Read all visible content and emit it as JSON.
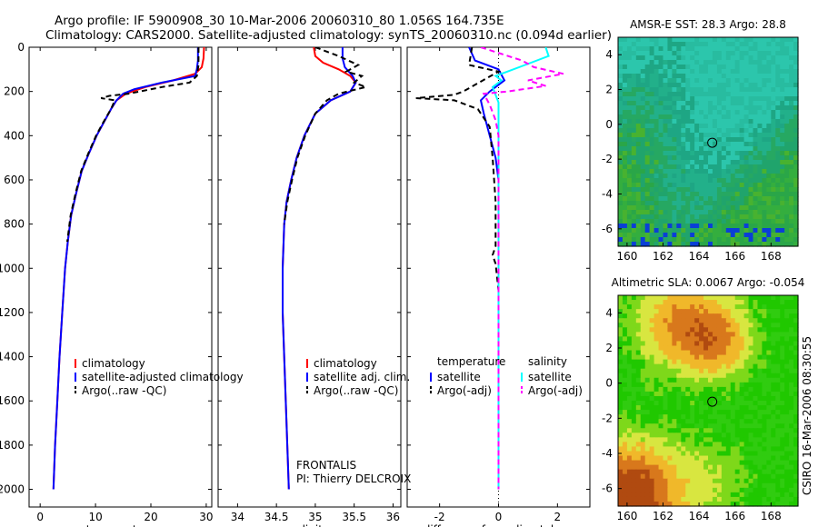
{
  "header": {
    "line1": "Argo profile: IF 5900908_30 10-Mar-2006 20060310_80 1.056S 164.735E",
    "line2": "Climatology: CARS2000. Satellite-adjusted climatology: synTS_20060310.nc (0.094d earlier)"
  },
  "credit": "CSIRO 16-Mar-2006 08:30:55",
  "colors": {
    "climatology": "#ff0000",
    "satellite": "#0000ff",
    "argo": "#000000",
    "salinity_satellite": "#00ffff",
    "salinity_argo": "#ff00ff"
  },
  "chart_data": [
    {
      "id": "temperature",
      "type": "line",
      "xlabel": "temperature",
      "ylabel": "",
      "xlim": [
        -2,
        31
      ],
      "ylim": [
        2080,
        0
      ],
      "xticks": [
        0,
        10,
        20,
        30
      ],
      "yticks": [
        0,
        200,
        400,
        600,
        800,
        1000,
        1200,
        1400,
        1600,
        1800,
        2000
      ],
      "legend": [
        "climatology",
        "satellite-adjusted climatology",
        "Argo(..raw -QC)"
      ],
      "series": [
        {
          "name": "climatology",
          "color": "#ff0000",
          "dash": "",
          "points": [
            [
              29.6,
              0
            ],
            [
              29.5,
              50
            ],
            [
              29.2,
              90
            ],
            [
              28.0,
              120
            ],
            [
              24,
              150
            ],
            [
              19,
              180
            ],
            [
              15.5,
              210
            ],
            [
              13.8,
              240
            ],
            [
              12.8,
              280
            ],
            [
              11.5,
              340
            ],
            [
              10.2,
              400
            ],
            [
              8.8,
              480
            ],
            [
              7.5,
              560
            ],
            [
              6.5,
              660
            ],
            [
              5.6,
              760
            ],
            [
              5.0,
              880
            ],
            [
              4.5,
              1000
            ],
            [
              4.0,
              1200
            ],
            [
              3.5,
              1400
            ],
            [
              3.1,
              1600
            ],
            [
              2.7,
              1800
            ],
            [
              2.4,
              2000
            ]
          ]
        },
        {
          "name": "satellite-adjusted climatology",
          "color": "#0000ff",
          "dash": "",
          "points": [
            [
              28.5,
              0
            ],
            [
              28.5,
              60
            ],
            [
              28.3,
              100
            ],
            [
              28.0,
              130
            ],
            [
              22,
              160
            ],
            [
              17,
              190
            ],
            [
              15,
              210
            ],
            [
              13.8,
              240
            ],
            [
              12.8,
              280
            ],
            [
              11.5,
              340
            ],
            [
              10.2,
              400
            ],
            [
              8.8,
              480
            ],
            [
              7.5,
              560
            ],
            [
              6.5,
              660
            ],
            [
              5.6,
              760
            ],
            [
              5.0,
              880
            ],
            [
              4.5,
              1000
            ],
            [
              4.0,
              1200
            ],
            [
              3.5,
              1400
            ],
            [
              3.1,
              1600
            ],
            [
              2.7,
              1800
            ],
            [
              2.4,
              2000
            ]
          ]
        },
        {
          "name": "Argo(..raw -QC)",
          "color": "#000000",
          "dash": "6,4",
          "points": [
            [
              28.6,
              0
            ],
            [
              28.6,
              80
            ],
            [
              28.3,
              130
            ],
            [
              27,
              160
            ],
            [
              22,
              180
            ],
            [
              16,
              210
            ],
            [
              12.5,
              220
            ],
            [
              11.0,
              230
            ],
            [
              13.5,
              240
            ],
            [
              12.8,
              280
            ],
            [
              11.4,
              340
            ],
            [
              10.1,
              400
            ],
            [
              8.7,
              480
            ],
            [
              7.4,
              560
            ],
            [
              6.4,
              660
            ],
            [
              5.5,
              760
            ],
            [
              4.9,
              880
            ]
          ]
        }
      ]
    },
    {
      "id": "salinity",
      "type": "line",
      "xlabel": "salinity",
      "ylabel": "",
      "xlim": [
        33.75,
        36.1
      ],
      "ylim": [
        2080,
        0
      ],
      "xticks": [
        34,
        34.5,
        35,
        35.5,
        36
      ],
      "yticks": [
        0,
        200,
        400,
        600,
        800,
        1000,
        1200,
        1400,
        1600,
        1800,
        2000
      ],
      "legend": [
        "climatology",
        "satellite adj. clim.",
        "Argo(..raw -QC)"
      ],
      "annotations": [
        "FRONTALIS",
        "PI: Thierry DELCROIX"
      ],
      "series": [
        {
          "name": "climatology",
          "color": "#ff0000",
          "dash": "",
          "points": [
            [
              34.98,
              0
            ],
            [
              35.0,
              40
            ],
            [
              35.1,
              70
            ],
            [
              35.3,
              100
            ],
            [
              35.45,
              130
            ],
            [
              35.52,
              160
            ],
            [
              35.45,
              200
            ],
            [
              35.2,
              240
            ],
            [
              35.0,
              300
            ],
            [
              34.86,
              400
            ],
            [
              34.76,
              500
            ],
            [
              34.69,
              600
            ],
            [
              34.63,
              700
            ],
            [
              34.6,
              800
            ],
            [
              34.58,
              1000
            ],
            [
              34.58,
              1200
            ],
            [
              34.6,
              1400
            ],
            [
              34.62,
              1600
            ],
            [
              34.64,
              1800
            ],
            [
              34.66,
              2000
            ]
          ]
        },
        {
          "name": "satellite adj. clim.",
          "color": "#0000ff",
          "dash": "",
          "points": [
            [
              35.35,
              0
            ],
            [
              35.35,
              50
            ],
            [
              35.38,
              90
            ],
            [
              35.48,
              130
            ],
            [
              35.52,
              160
            ],
            [
              35.45,
              200
            ],
            [
              35.2,
              240
            ],
            [
              35.0,
              300
            ],
            [
              34.86,
              400
            ],
            [
              34.76,
              500
            ],
            [
              34.69,
              600
            ],
            [
              34.63,
              700
            ],
            [
              34.6,
              800
            ],
            [
              34.58,
              1000
            ],
            [
              34.58,
              1200
            ],
            [
              34.6,
              1400
            ],
            [
              34.62,
              1600
            ],
            [
              34.64,
              1800
            ],
            [
              34.66,
              2000
            ]
          ]
        },
        {
          "name": "Argo(..raw -QC)",
          "color": "#000000",
          "dash": "6,4",
          "points": [
            [
              35.0,
              0
            ],
            [
              35.3,
              40
            ],
            [
              35.55,
              80
            ],
            [
              35.4,
              110
            ],
            [
              35.6,
              130
            ],
            [
              35.5,
              160
            ],
            [
              35.65,
              180
            ],
            [
              35.3,
              210
            ],
            [
              35.15,
              240
            ],
            [
              35.0,
              300
            ],
            [
              34.87,
              400
            ],
            [
              34.77,
              500
            ],
            [
              34.7,
              600
            ],
            [
              34.64,
              700
            ],
            [
              34.6,
              800
            ]
          ]
        }
      ]
    },
    {
      "id": "difference",
      "type": "line",
      "xlabel": "difference from climatology",
      "ylabel": "",
      "xlim": [
        -3.1,
        3.1
      ],
      "ylim": [
        2080,
        0
      ],
      "xticks": [
        -2,
        0,
        2
      ],
      "yticks": [
        0,
        200,
        400,
        600,
        800,
        1000,
        1200,
        1400,
        1600,
        1800,
        2000
      ],
      "legend_headers": [
        "temperature",
        "salinity"
      ],
      "legend": [
        "satellite",
        "Argo(-adj)",
        "satellite",
        "Argo(-adj)"
      ],
      "series": [
        {
          "name": "satellite",
          "group": "temperature",
          "color": "#0000ff",
          "dash": "",
          "points": [
            [
              -1.0,
              0
            ],
            [
              -0.8,
              60
            ],
            [
              0,
              100
            ],
            [
              0.2,
              150
            ],
            [
              -0.3,
              200
            ],
            [
              -0.6,
              240
            ],
            [
              -0.5,
              300
            ],
            [
              -0.3,
              400
            ],
            [
              -0.1,
              500
            ],
            [
              0,
              600
            ],
            [
              0,
              2000
            ]
          ]
        },
        {
          "name": "Argo(-adj)",
          "group": "temperature",
          "color": "#000000",
          "dash": "6,4",
          "points": [
            [
              -0.9,
              0
            ],
            [
              -1.0,
              80
            ],
            [
              0,
              110
            ],
            [
              -0.4,
              140
            ],
            [
              -1.2,
              200
            ],
            [
              -1.5,
              215
            ],
            [
              -2.8,
              230
            ],
            [
              -1.5,
              240
            ],
            [
              -0.7,
              280
            ],
            [
              -0.3,
              360
            ],
            [
              -0.2,
              500
            ],
            [
              -0.1,
              700
            ],
            [
              -0.1,
              900
            ],
            [
              -0.2,
              940
            ],
            [
              -0.1,
              980
            ],
            [
              0,
              1100
            ],
            [
              0,
              1200
            ]
          ]
        },
        {
          "name": "satellite",
          "group": "salinity",
          "color": "#00ffff",
          "dash": "",
          "points": [
            [
              1.6,
              0
            ],
            [
              1.7,
              40
            ],
            [
              0.9,
              80
            ],
            [
              0.3,
              110
            ],
            [
              -0.1,
              130
            ],
            [
              0.1,
              150
            ],
            [
              -0.2,
              180
            ],
            [
              0,
              250
            ],
            [
              0,
              2000
            ]
          ]
        },
        {
          "name": "Argo(-adj)",
          "group": "salinity",
          "color": "#ff00ff",
          "dash": "6,4",
          "points": [
            [
              -0.6,
              0
            ],
            [
              0.8,
              60
            ],
            [
              1.2,
              90
            ],
            [
              2.2,
              120
            ],
            [
              1.0,
              150
            ],
            [
              1.6,
              175
            ],
            [
              0.3,
              200
            ],
            [
              -0.5,
              210
            ],
            [
              -0.3,
              260
            ],
            [
              -0.1,
              330
            ],
            [
              0,
              400
            ],
            [
              0,
              2000
            ]
          ]
        }
      ]
    },
    {
      "id": "sst-map",
      "type": "heatmap",
      "title": "AMSR-E SST: 28.3 Argo: 28.8",
      "xlim": [
        159.5,
        169.5
      ],
      "ylim": [
        -7,
        5
      ],
      "xticks": [
        160,
        162,
        164,
        166,
        168
      ],
      "yticks": [
        -6,
        -4,
        -2,
        0,
        2,
        4
      ],
      "marker": {
        "lon": 164.735,
        "lat": -1.056
      },
      "color_scale": [
        "#0a3fd6",
        "#2cc0a6",
        "#1fa27a",
        "#2ea84a"
      ]
    },
    {
      "id": "sla-map",
      "type": "heatmap",
      "title": "Altimetric SLA: 0.0067 Argo: -0.054",
      "xlim": [
        159.5,
        169.5
      ],
      "ylim": [
        -7,
        5
      ],
      "xticks": [
        160,
        162,
        164,
        166,
        168
      ],
      "yticks": [
        -6,
        -4,
        -2,
        0,
        2,
        4
      ],
      "marker": {
        "lon": 164.735,
        "lat": -1.056
      },
      "color_scale": [
        "#16c000",
        "#f2e23a",
        "#f0a020",
        "#c05010"
      ]
    }
  ]
}
